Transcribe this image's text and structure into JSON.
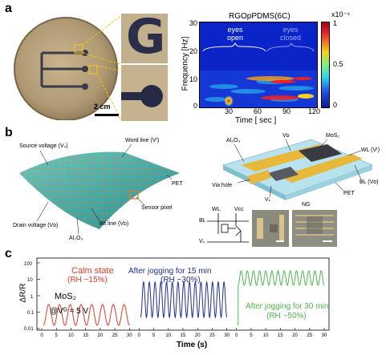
{
  "panels": {
    "a": "a",
    "b": "b",
    "c": "c"
  },
  "panel_a": {
    "scale_bar_label": "2 cm",
    "zoom_letter": "G",
    "spectrogram": {
      "title": "RGOpPDMS(6C)",
      "xlabel": "Time [ sec ]",
      "ylabel": "Frequency [Hz]",
      "x_ticks": [
        "30",
        "60",
        "90",
        "120"
      ],
      "y_ticks": [
        "0",
        "10",
        "20",
        "30"
      ],
      "colorbar_exponent": "x10⁻⁴",
      "colorbar_ticks": [
        "1",
        "0.5",
        "0"
      ],
      "annotation_open": "eyes\nopen",
      "annotation_closed": "eyes\nclosed",
      "colors": {
        "background": "#0a24c8",
        "low": "#1e4fe0",
        "mid": "#2fd2f0",
        "high": "#e8202a"
      }
    }
  },
  "panel_b": {
    "sheet_labels": {
      "source": "Source voltage (Vₛ)",
      "word": "Word line (Vᵗ)",
      "pet": "PET",
      "sensor": "Sensor pixel",
      "drain": "Drain voltage (Vᴅ)",
      "bit": "Bit line (Vᴅ)",
      "al2o3": "Al₂O₃"
    },
    "device_labels": {
      "al2o3": "Al₂O₃",
      "vd": "Vᴅ",
      "mos2": "MoS₂",
      "wl": "WL (Vᵗ)",
      "bl": "BL (Vᴅ)",
      "via": "Via hole",
      "vs": "Vₛ",
      "pet": "PET",
      "ng": "NG"
    },
    "circuit_labels": {
      "wl": "WL",
      "vcc": "Vᴄᴄ",
      "bl": "BL",
      "vs": "Vₛ"
    }
  },
  "panel_c": {
    "ylabel": "ΔR/R",
    "xlabel": "Time (s)",
    "y_ticks": [
      "100",
      "10",
      "1",
      "0.1",
      "0.01"
    ],
    "material": "MoS₂",
    "gate": "@Vᴳ = 5 V",
    "segments": [
      {
        "name": "Calm state",
        "condition": "(RH ~15%)",
        "color": "#e23a26",
        "x_ticks": [
          "0",
          "5",
          "10",
          "15",
          "20",
          "25",
          "30"
        ]
      },
      {
        "name": "After jogging for 15 min",
        "condition": "(RH ~30%)",
        "color": "#1f2f96",
        "x_ticks": [
          "0",
          "5",
          "10",
          "15",
          "20",
          "25",
          "30"
        ]
      },
      {
        "name": "After jogging for 30 min",
        "condition": "(RH ~50%)",
        "color": "#4cb84a",
        "x_ticks": [
          "0",
          "5",
          "10",
          "15",
          "20",
          "25",
          "30"
        ]
      }
    ]
  }
}
